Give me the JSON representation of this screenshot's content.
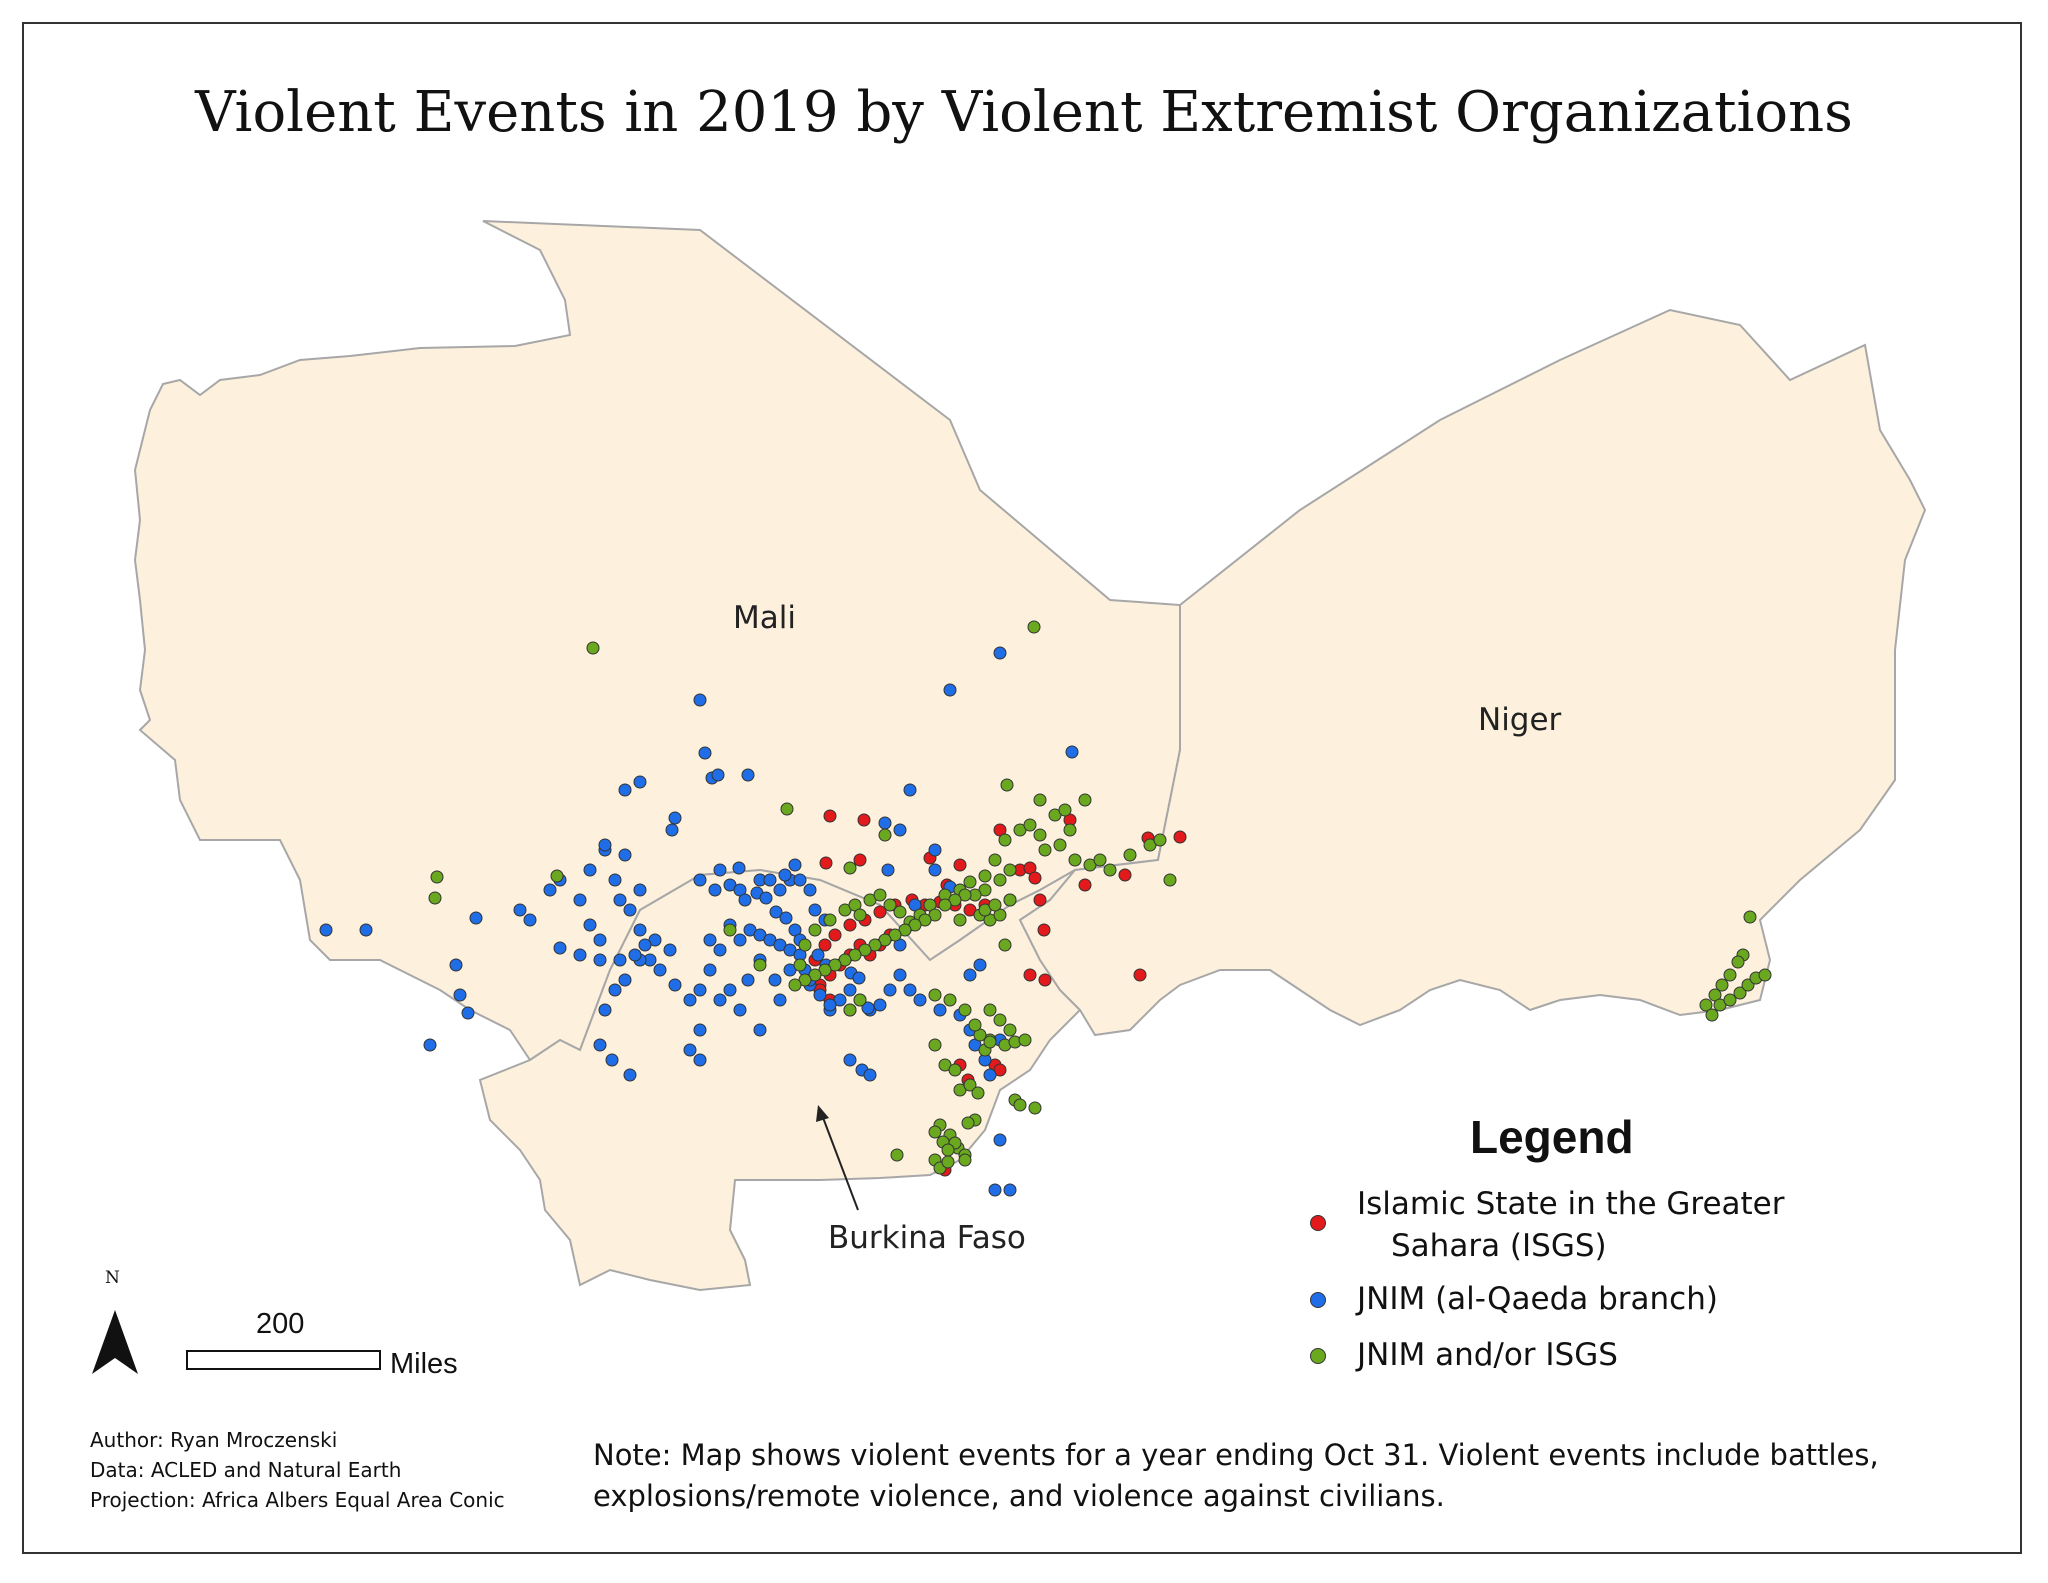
{
  "title": "Violent Events in 2019 by Violent Extremist Organizations",
  "labels": {
    "mali": "Mali",
    "niger": "Niger",
    "burkina": "Burkina Faso"
  },
  "legend": {
    "title": "Legend",
    "items": [
      {
        "line1": "Islamic State in the Greater",
        "line2": "Sahara (ISGS)",
        "color": "#e31a1c"
      },
      {
        "line1": "JNIM (al-Qaeda branch)",
        "line2": "",
        "color": "#1f6ee8"
      },
      {
        "line1": "JNIM and/or ISGS",
        "line2": "",
        "color": "#6aa81f"
      }
    ]
  },
  "scale": {
    "value": "200",
    "unit": "Miles"
  },
  "north": "N",
  "credits": {
    "author": "Author: Ryan Mroczenski",
    "data": "Data: ACLED and Natural Earth",
    "projection": "Projection: Africa Albers Equal Area Conic"
  },
  "note": {
    "line1": "Note: Map shows violent events for a year ending Oct 31. Violent events include battles,",
    "line2": "explosions/remote violence, and violence against civilians."
  },
  "colors": {
    "land": "#fdf1de",
    "border": "#a7a7a7",
    "isgs": "#e31a1c",
    "jnim": "#1f6ee8",
    "both": "#6aa81f"
  }
}
